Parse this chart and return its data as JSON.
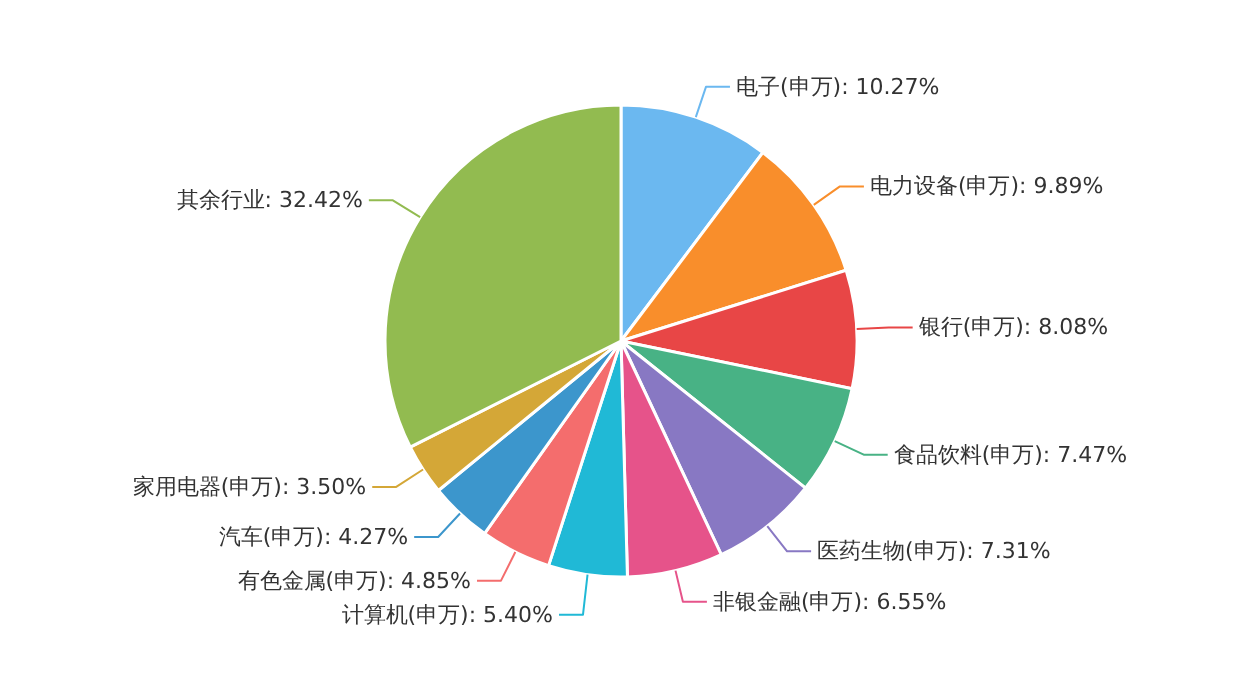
{
  "chart_data": {
    "type": "pie",
    "categories": [
      "电子(申万)",
      "电力设备(申万)",
      "银行(申万)",
      "食品饮料(申万)",
      "医药生物(申万)",
      "非银金融(申万)",
      "计算机(申万)",
      "有色金属(申万)",
      "汽车(申万)",
      "家用电器(申万)",
      "其余行业"
    ],
    "values": [
      10.27,
      9.89,
      8.08,
      7.47,
      7.31,
      6.55,
      5.4,
      4.85,
      4.27,
      3.5,
      32.42
    ],
    "value_labels": [
      "10.27%",
      "9.89%",
      "8.08%",
      "7.47%",
      "7.31%",
      "6.55%",
      "5.40%",
      "4.85%",
      "4.27%",
      "3.50%",
      "32.42%"
    ],
    "colors": [
      "#6bb8f0",
      "#f98e2b",
      "#e84646",
      "#48b285",
      "#8878c3",
      "#e6538a",
      "#20b9d6",
      "#f46d6d",
      "#3c96cc",
      "#d4a737",
      "#92bb50"
    ],
    "legend": false
  }
}
